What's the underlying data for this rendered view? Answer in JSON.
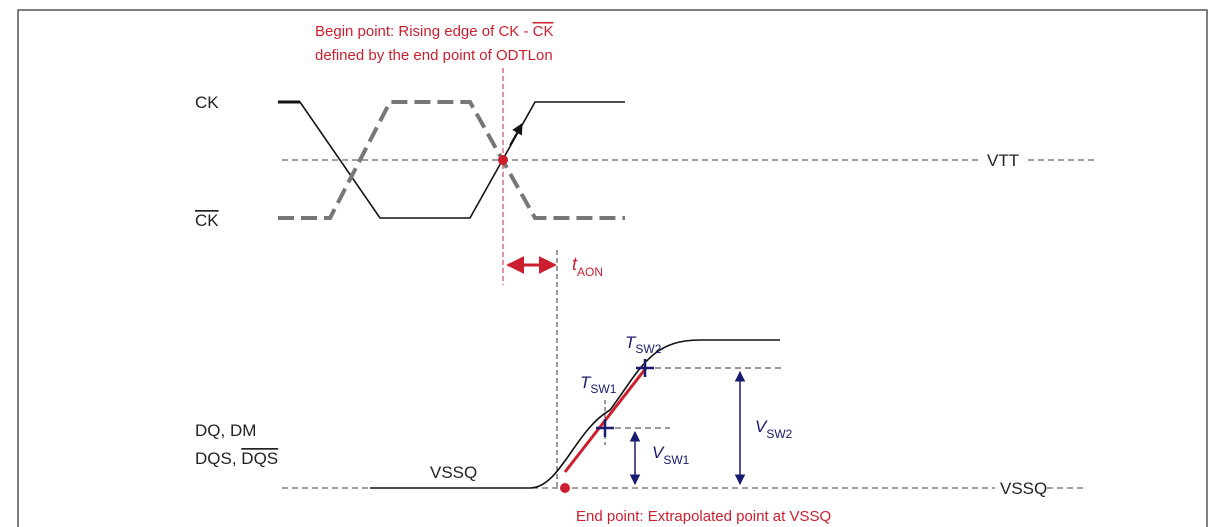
{
  "begin_note": {
    "line1": "Begin point: Rising edge of CK - ",
    "line1_overlined": "CK",
    "line2": "defined by the end point of ODTLon"
  },
  "signals": {
    "ck": "CK",
    "ck_bar": "CK",
    "dq_line1": "DQ, DM",
    "dq_line2": "DQS, ",
    "dq_line2_overlined": "DQS"
  },
  "levels": {
    "vtt": "VTT",
    "vssq_left": "VSSQ",
    "vssq_right": "VSSQ"
  },
  "timing": {
    "t": "t",
    "t_sub": "AON"
  },
  "markers": {
    "tsw2": "T",
    "tsw2_sub": "SW2",
    "tsw1": "T",
    "tsw1_sub": "SW1",
    "vsw1": "V",
    "vsw1_sub": "SW1",
    "vsw2": "V",
    "vsw2_sub": "SW2"
  },
  "end_note": "End point: Extrapolated point at VSSQ"
}
